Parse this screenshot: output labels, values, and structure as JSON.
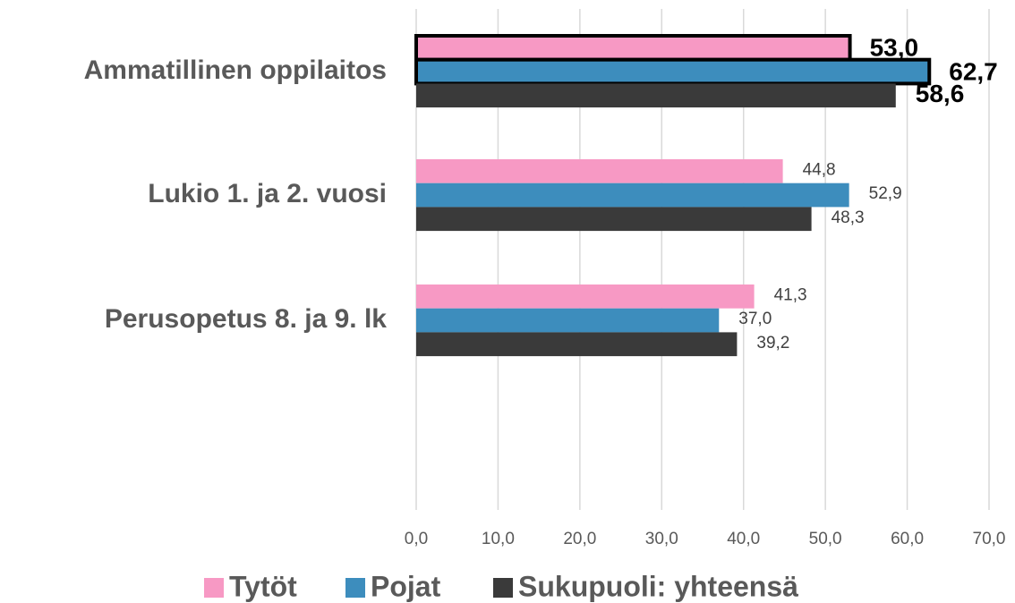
{
  "chart_data": {
    "type": "bar",
    "orientation": "horizontal",
    "categories": [
      "Ammatillinen oppilaitos",
      "Lukio 1. ja 2. vuosi",
      "Perusopetus 8. ja 9. lk"
    ],
    "series": [
      {
        "name": "Tytöt",
        "color": "#f799c4",
        "values": [
          53.0,
          44.8,
          41.3
        ],
        "value_labels": [
          "53,0",
          "44,8",
          "41,3"
        ]
      },
      {
        "name": "Pojat",
        "color": "#3d8dbd",
        "values": [
          62.7,
          52.9,
          37.0
        ],
        "value_labels": [
          "62,7",
          "52,9",
          "37,0"
        ]
      },
      {
        "name": "Sukupuoli: yhteensä",
        "color": "#3a3a3a",
        "values": [
          58.6,
          48.3,
          39.2
        ],
        "value_labels": [
          "58,6",
          "48,3",
          "39,2"
        ]
      }
    ],
    "xlim": [
      0,
      70
    ],
    "xticks": [
      {
        "value": 0,
        "label": "0,0"
      },
      {
        "value": 10,
        "label": "10,0"
      },
      {
        "value": 20,
        "label": "20,0"
      },
      {
        "value": 30,
        "label": "30,0"
      },
      {
        "value": 40,
        "label": "40,0"
      },
      {
        "value": 50,
        "label": "50,0"
      },
      {
        "value": 60,
        "label": "60,0"
      },
      {
        "value": 70,
        "label": "70,0"
      }
    ],
    "grid": true,
    "legend": "bottom"
  }
}
